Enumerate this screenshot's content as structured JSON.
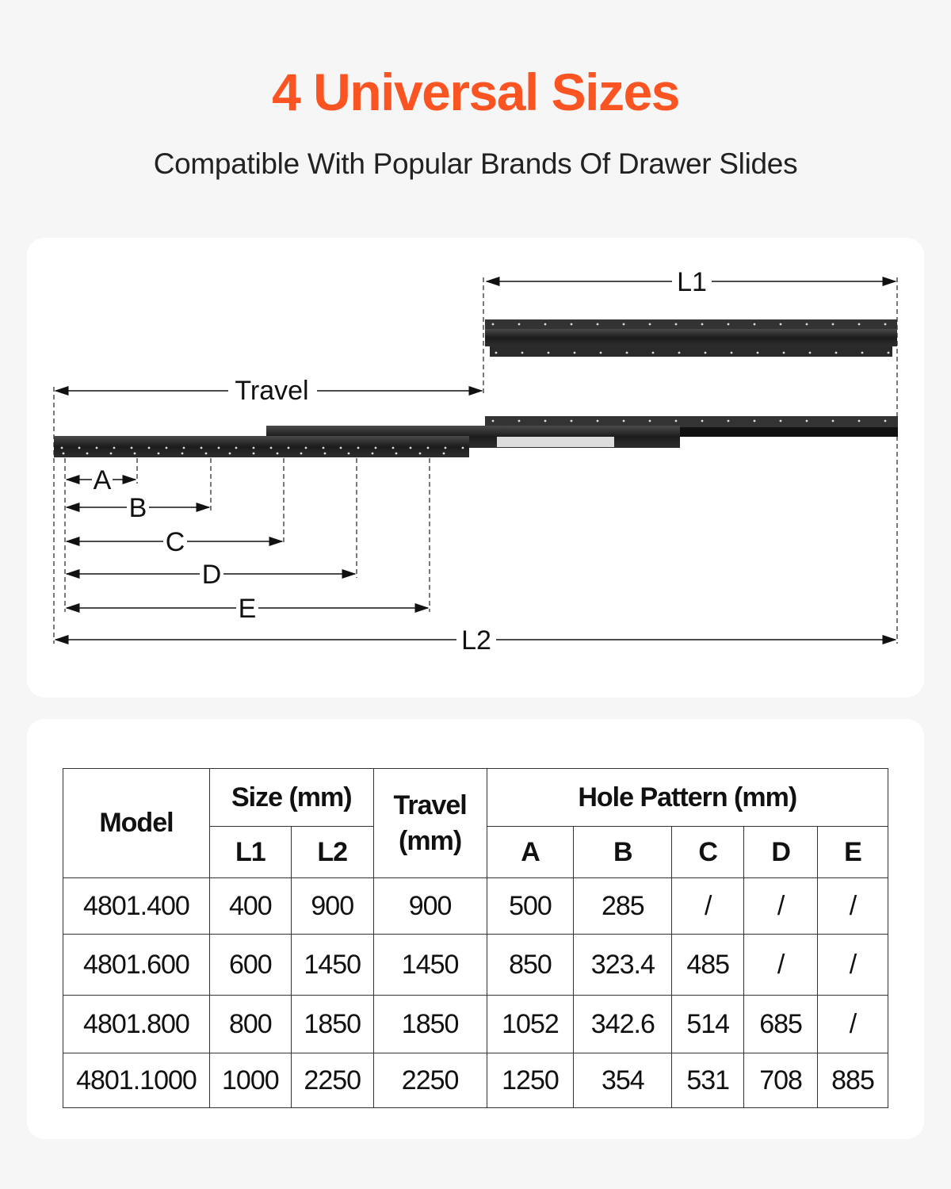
{
  "header": {
    "title": "4 Universal Sizes",
    "subtitle": "Compatible With Popular Brands Of Drawer Slides",
    "accent_color": "#fa5423"
  },
  "diagram": {
    "labels": {
      "l1": "L1",
      "travel": "Travel",
      "a": "A",
      "b": "B",
      "c": "C",
      "d": "D",
      "e": "E",
      "l2": "L2"
    }
  },
  "table": {
    "headers": {
      "model": "Model",
      "size": "Size (mm)",
      "l1": "L1",
      "l2": "L2",
      "travel": "Travel (mm)",
      "hole_pattern": "Hole Pattern (mm)",
      "a": "A",
      "b": "B",
      "c": "C",
      "d": "D",
      "e": "E"
    },
    "rows": [
      [
        "4801.400",
        "400",
        "900",
        "900",
        "500",
        "285",
        "/",
        "/",
        "/"
      ],
      [
        "4801.600",
        "600",
        "1450",
        "1450",
        "850",
        "323.4",
        "485",
        "/",
        "/"
      ],
      [
        "4801.800",
        "800",
        "1850",
        "1850",
        "1052",
        "342.6",
        "514",
        "685",
        "/"
      ],
      [
        "4801.1000",
        "1000",
        "2250",
        "2250",
        "1250",
        "354",
        "531",
        "708",
        "885"
      ]
    ]
  }
}
